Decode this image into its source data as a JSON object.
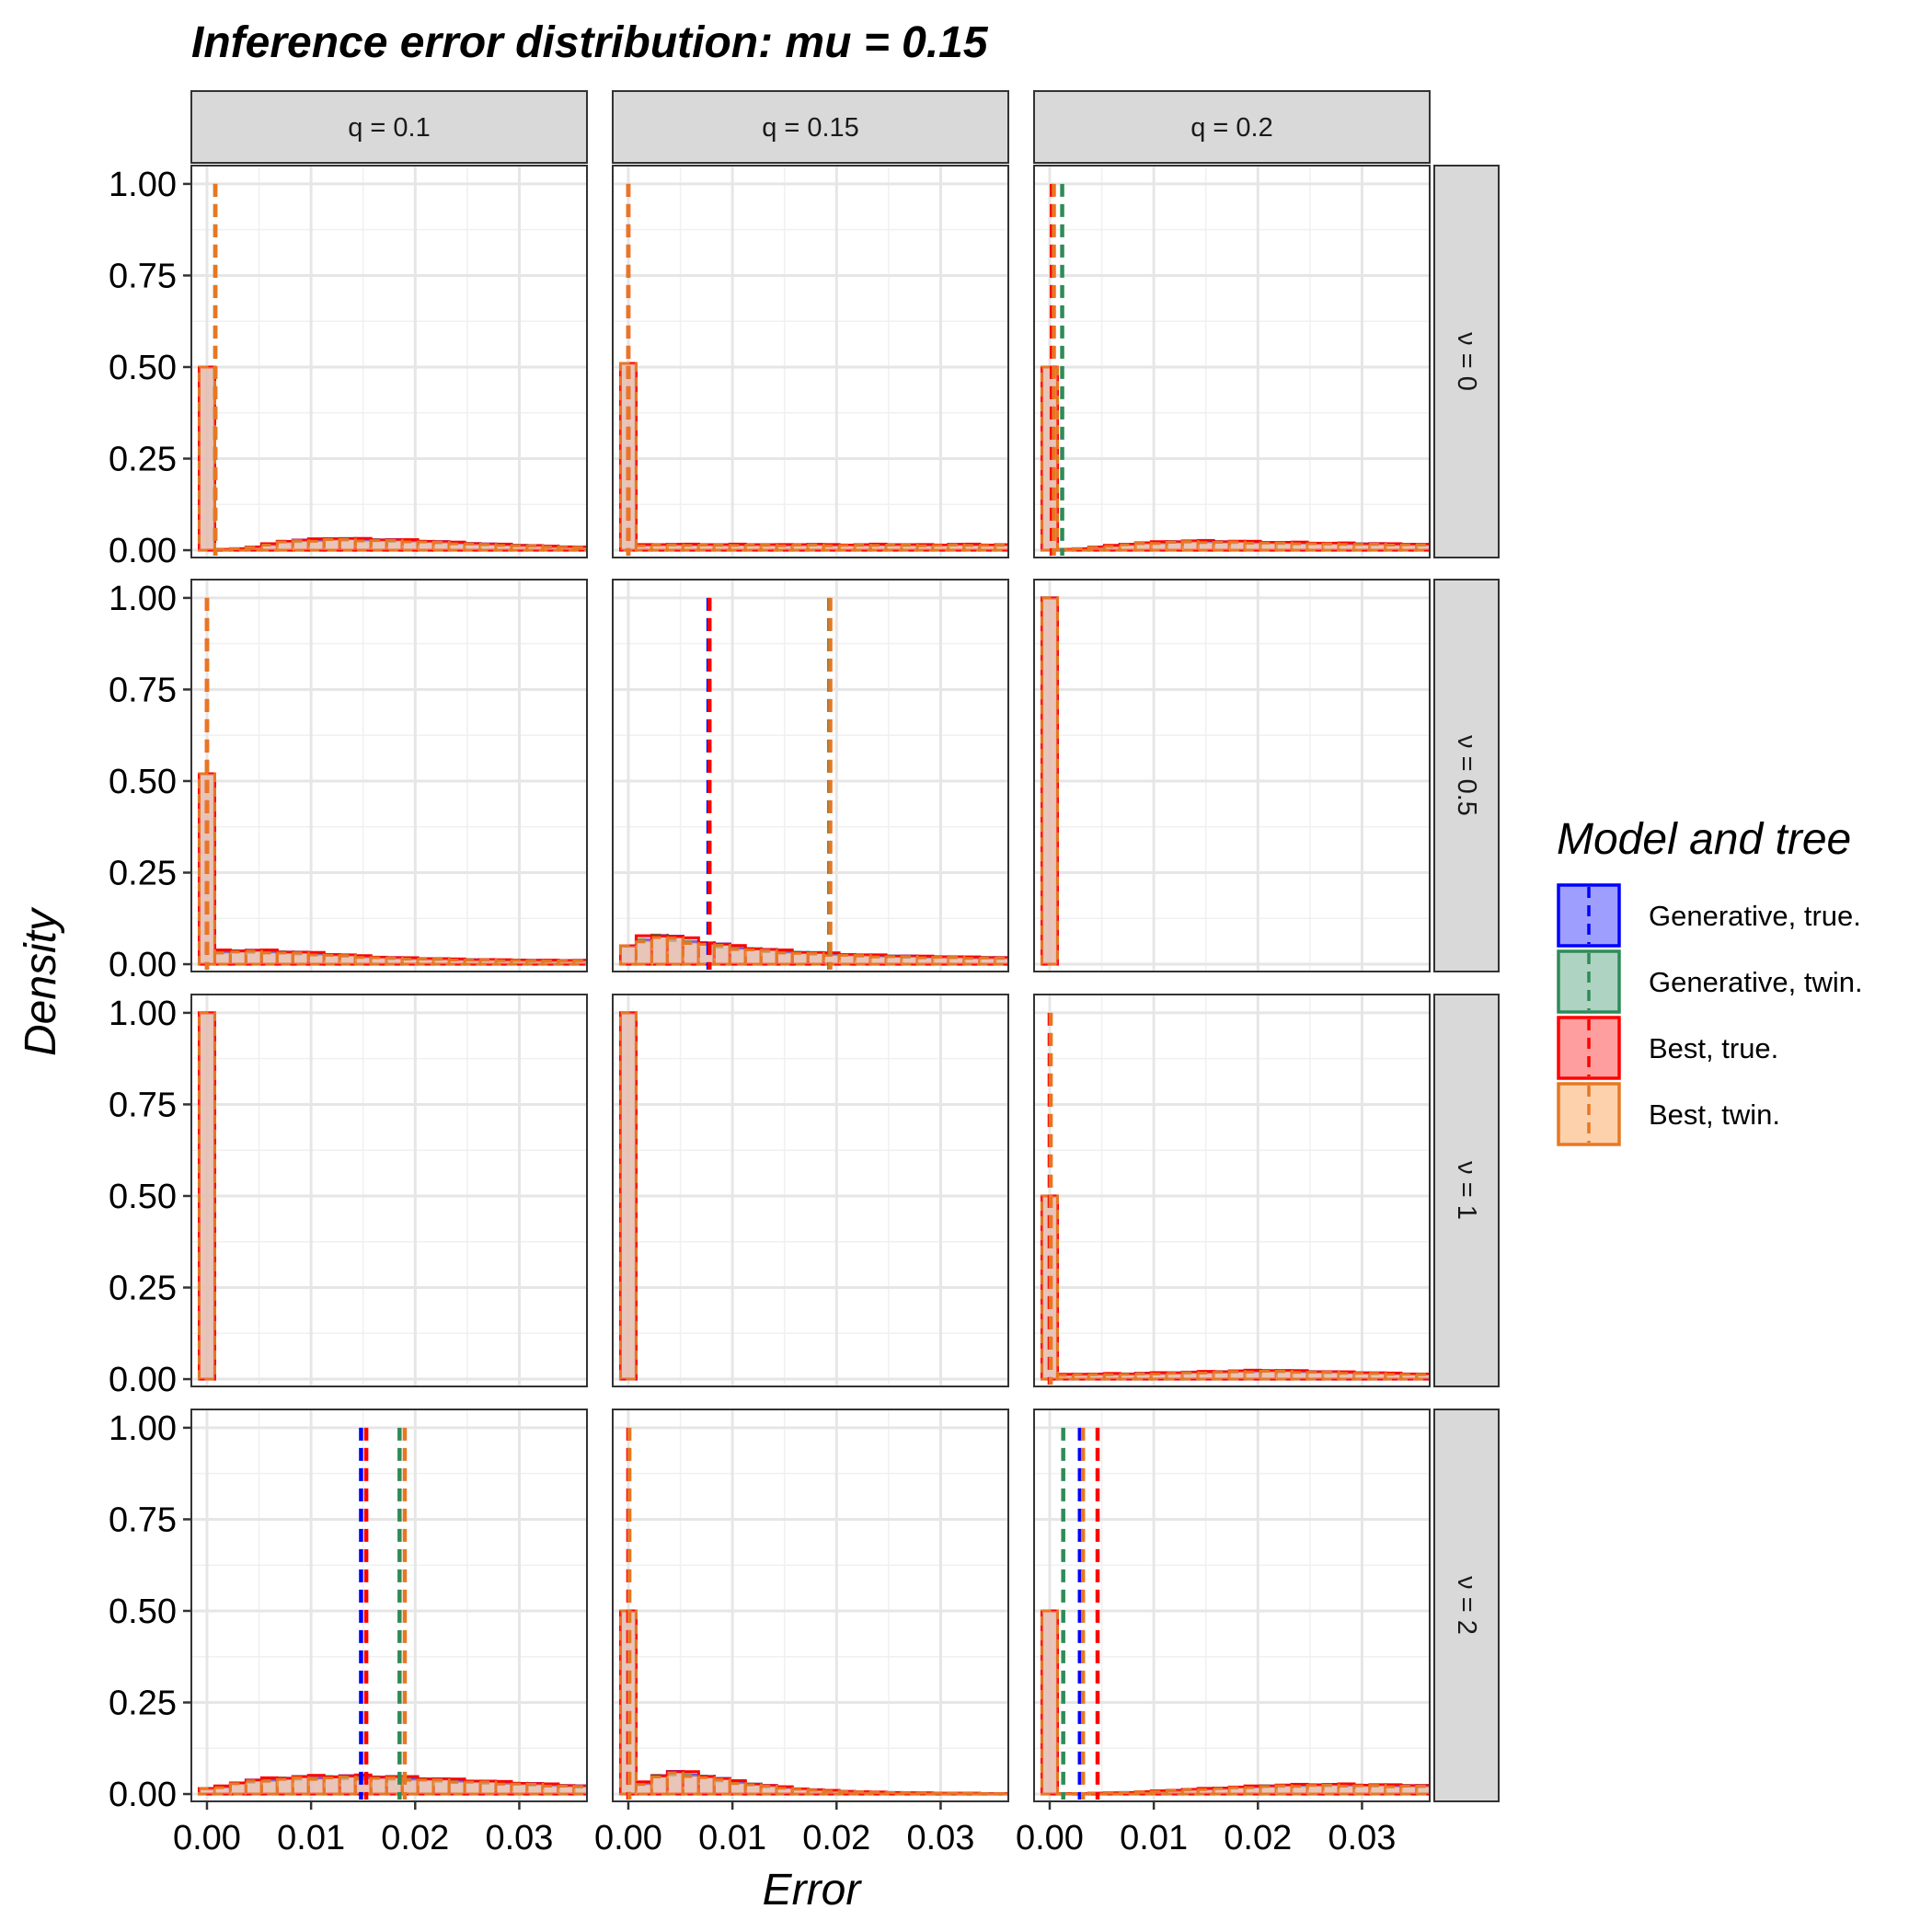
{
  "chart_data": {
    "type": "histogram-facet-grid",
    "title": "Inference error distribution: mu = 0.15",
    "xlabel": "Error",
    "ylabel": "Density",
    "xlim": [
      -0.0015,
      0.0365
    ],
    "ylim": [
      -0.02,
      1.05
    ],
    "x_ticks": [
      0,
      0.01,
      0.02,
      0.03
    ],
    "x_tick_labels": [
      "0.00",
      "0.01",
      "0.02",
      "0.03"
    ],
    "y_ticks": [
      0,
      0.25,
      0.5,
      0.75,
      1.0
    ],
    "y_tick_labels": [
      "0.00",
      "0.25",
      "0.50",
      "0.75",
      "1.00"
    ],
    "grid": true,
    "bin_width": 0.0015,
    "col_strips": [
      "q = 0.1",
      "q = 0.15",
      "q = 0.2"
    ],
    "row_strips": [
      "ν = 0",
      "ν = 0.5",
      "ν = 1",
      "ν = 2"
    ],
    "legend": {
      "title": "Model and tree",
      "position": "right",
      "entries": [
        {
          "label": "Generative, true.",
          "color": "#0000ff",
          "fill": "#9999ff"
        },
        {
          "label": "Generative, twin.",
          "color": "#2e8b57",
          "fill": "#abd1c0"
        },
        {
          "label": "Best, true.",
          "color": "#ff0000",
          "fill": "#ff9999"
        },
        {
          "label": "Best, twin.",
          "color": "#e87722",
          "fill": "#fccfa6"
        }
      ]
    },
    "panels": [
      {
        "row": 0,
        "col": 0,
        "spike": 0.5,
        "tail": [
          0.002,
          0.004,
          0.008,
          0.016,
          0.024,
          0.026,
          0.028,
          0.031,
          0.03,
          0.029,
          0.028,
          0.027,
          0.026,
          0.024,
          0.022,
          0.02,
          0.018,
          0.016,
          0.015,
          0.013,
          0.012,
          0.01,
          0.009,
          0.008
        ],
        "vlines": [
          {
            "series": 1,
            "x": 0.0008
          },
          {
            "series": 3,
            "x": 0.0008
          }
        ]
      },
      {
        "row": 0,
        "col": 1,
        "spike": 0.51,
        "tail": [
          0.014,
          0.015,
          0.015,
          0.015,
          0.015,
          0.014,
          0.015,
          0.015,
          0.014,
          0.014,
          0.015,
          0.015,
          0.014,
          0.014,
          0.014,
          0.015,
          0.015,
          0.014,
          0.014,
          0.014,
          0.015,
          0.015,
          0.014,
          0.014
        ],
        "vlines": [
          {
            "series": 2,
            "x": 0.0
          },
          {
            "series": 3,
            "x": 0.0
          }
        ]
      },
      {
        "row": 0,
        "col": 2,
        "spike": 0.5,
        "tail": [
          0.002,
          0.004,
          0.008,
          0.012,
          0.016,
          0.019,
          0.021,
          0.023,
          0.024,
          0.024,
          0.023,
          0.023,
          0.022,
          0.021,
          0.02,
          0.02,
          0.019,
          0.018,
          0.018,
          0.017,
          0.017,
          0.016,
          0.016,
          0.015
        ],
        "vlines": [
          {
            "series": 2,
            "x": 0.0002
          },
          {
            "series": 1,
            "x": 0.0012
          },
          {
            "series": 3,
            "x": 0.0004
          }
        ]
      },
      {
        "row": 1,
        "col": 0,
        "spike": 0.52,
        "tail": [
          0.035,
          0.036,
          0.036,
          0.035,
          0.033,
          0.031,
          0.029,
          0.026,
          0.024,
          0.021,
          0.019,
          0.017,
          0.016,
          0.015,
          0.014,
          0.013,
          0.012,
          0.012,
          0.011,
          0.011,
          0.01,
          0.01,
          0.01,
          0.01
        ],
        "vlines": [
          {
            "series": 2,
            "x": 0.0
          },
          {
            "series": 3,
            "x": 0.0
          }
        ]
      },
      {
        "row": 1,
        "col": 1,
        "spike": 0.05,
        "tail": [
          0.07,
          0.078,
          0.072,
          0.065,
          0.058,
          0.052,
          0.046,
          0.042,
          0.038,
          0.035,
          0.032,
          0.03,
          0.028,
          0.026,
          0.024,
          0.023,
          0.022,
          0.021,
          0.02,
          0.02,
          0.019,
          0.018,
          0.018,
          0.017
        ],
        "vlines": [
          {
            "series": 0,
            "x": 0.0077
          },
          {
            "series": 2,
            "x": 0.0078
          },
          {
            "series": 1,
            "x": 0.0193
          },
          {
            "series": 3,
            "x": 0.0194
          }
        ]
      },
      {
        "row": 1,
        "col": 2,
        "spike": 1.0,
        "tail": [
          0,
          0,
          0,
          0,
          0,
          0,
          0,
          0,
          0,
          0,
          0,
          0,
          0,
          0,
          0,
          0,
          0,
          0,
          0,
          0,
          0,
          0,
          0,
          0
        ],
        "vlines": []
      },
      {
        "row": 2,
        "col": 0,
        "spike": 1.0,
        "tail": [
          0,
          0,
          0,
          0,
          0,
          0,
          0,
          0,
          0,
          0,
          0,
          0,
          0,
          0,
          0,
          0,
          0,
          0,
          0,
          0,
          0,
          0,
          0,
          0
        ],
        "vlines": []
      },
      {
        "row": 2,
        "col": 1,
        "spike": 1.0,
        "tail": [
          0,
          0,
          0,
          0,
          0,
          0,
          0,
          0,
          0,
          0,
          0,
          0,
          0,
          0,
          0,
          0,
          0,
          0,
          0,
          0,
          0,
          0,
          0,
          0
        ],
        "vlines": []
      },
      {
        "row": 2,
        "col": 2,
        "spike": 0.5,
        "tail": [
          0.012,
          0.013,
          0.013,
          0.014,
          0.014,
          0.015,
          0.016,
          0.017,
          0.018,
          0.019,
          0.02,
          0.021,
          0.022,
          0.023,
          0.022,
          0.021,
          0.02,
          0.019,
          0.018,
          0.017,
          0.016,
          0.015,
          0.014,
          0.013
        ],
        "vlines": [
          {
            "series": 2,
            "x": 0.0
          },
          {
            "series": 3,
            "x": 0.0001
          }
        ]
      },
      {
        "row": 3,
        "col": 0,
        "spike": 0.015,
        "tail": [
          0.02,
          0.03,
          0.036,
          0.04,
          0.043,
          0.045,
          0.046,
          0.047,
          0.047,
          0.047,
          0.046,
          0.045,
          0.043,
          0.041,
          0.039,
          0.037,
          0.035,
          0.033,
          0.031,
          0.029,
          0.027,
          0.025,
          0.023,
          0.021
        ],
        "vlines": [
          {
            "series": 0,
            "x": 0.0148
          },
          {
            "series": 2,
            "x": 0.0153
          },
          {
            "series": 1,
            "x": 0.0185
          },
          {
            "series": 3,
            "x": 0.019
          }
        ]
      },
      {
        "row": 3,
        "col": 1,
        "spike": 0.5,
        "tail": [
          0.03,
          0.05,
          0.058,
          0.055,
          0.048,
          0.04,
          0.033,
          0.027,
          0.022,
          0.018,
          0.014,
          0.011,
          0.009,
          0.007,
          0.006,
          0.005,
          0.004,
          0.003,
          0.003,
          0.002,
          0.002,
          0.002,
          0.001,
          0.001
        ],
        "vlines": [
          {
            "series": 2,
            "x": 0.0
          },
          {
            "series": 3,
            "x": 0.0001
          }
        ]
      },
      {
        "row": 3,
        "col": 2,
        "spike": 0.5,
        "tail": [
          0.001,
          0.001,
          0.002,
          0.003,
          0.004,
          0.006,
          0.008,
          0.01,
          0.012,
          0.014,
          0.016,
          0.018,
          0.02,
          0.022,
          0.023,
          0.024,
          0.025,
          0.025,
          0.025,
          0.024,
          0.024,
          0.023,
          0.023,
          0.022
        ],
        "vlines": [
          {
            "series": 1,
            "x": 0.0013
          },
          {
            "series": 0,
            "x": 0.0029
          },
          {
            "series": 3,
            "x": 0.0032
          },
          {
            "series": 2,
            "x": 0.0046
          }
        ]
      }
    ]
  }
}
